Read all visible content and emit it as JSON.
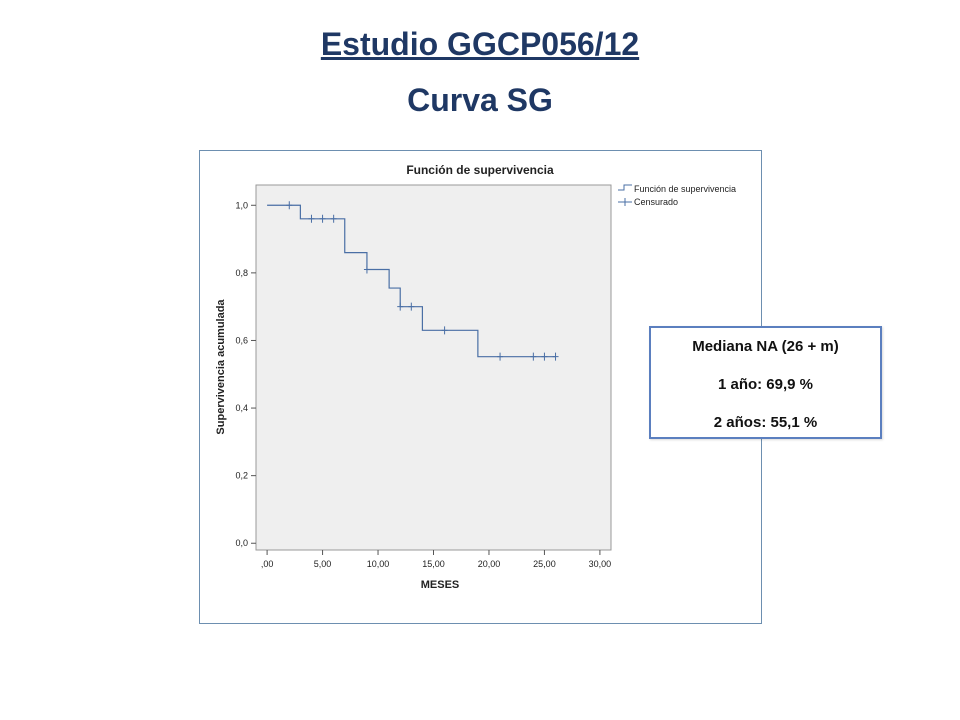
{
  "slide": {
    "title": "Estudio GGCP056/12",
    "subtitle": "Curva SG"
  },
  "info_box": {
    "lines": [
      "Mediana NA (26 + m)",
      "1 año: 69,9 %",
      "2 años: 55,1 %"
    ]
  },
  "colors": {
    "title": "#1f3864",
    "curve": "#4a6fa5",
    "plot_bg": "#efefef",
    "box_border": "#5b7fbf"
  },
  "chart_data": {
    "type": "line",
    "style": "step",
    "title": "Función de supervivencia",
    "xlabel": "MESES",
    "ylabel": "Supervivencia acumulada",
    "xlim": [
      -1,
      31
    ],
    "ylim": [
      -0.02,
      1.06
    ],
    "x_ticks": [
      0,
      5,
      10,
      15,
      20,
      25,
      30
    ],
    "x_tick_labels": [
      ",00",
      "5,00",
      "10,00",
      "15,00",
      "20,00",
      "25,00",
      "30,00"
    ],
    "y_ticks": [
      0,
      0.2,
      0.4,
      0.6,
      0.8,
      1.0
    ],
    "y_tick_labels": [
      "0,0",
      "0,2",
      "0,4",
      "0,6",
      "0,8",
      "1,0"
    ],
    "grid": false,
    "legend_position": "top-right",
    "series": [
      {
        "name": "Función de supervivencia",
        "steps": [
          [
            0,
            1.0
          ],
          [
            3,
            0.96
          ],
          [
            7,
            0.86
          ],
          [
            9,
            0.81
          ],
          [
            11,
            0.755
          ],
          [
            12,
            0.7
          ],
          [
            14,
            0.63
          ],
          [
            19,
            0.552
          ],
          [
            26,
            0.552
          ]
        ]
      },
      {
        "name": "Censurado",
        "points": [
          [
            2,
            1.0
          ],
          [
            4,
            0.96
          ],
          [
            5,
            0.96
          ],
          [
            6,
            0.96
          ],
          [
            9,
            0.81
          ],
          [
            12,
            0.7
          ],
          [
            13,
            0.7
          ],
          [
            16,
            0.63
          ],
          [
            21,
            0.552
          ],
          [
            24,
            0.552
          ],
          [
            25,
            0.552
          ],
          [
            26,
            0.552
          ]
        ]
      }
    ]
  }
}
